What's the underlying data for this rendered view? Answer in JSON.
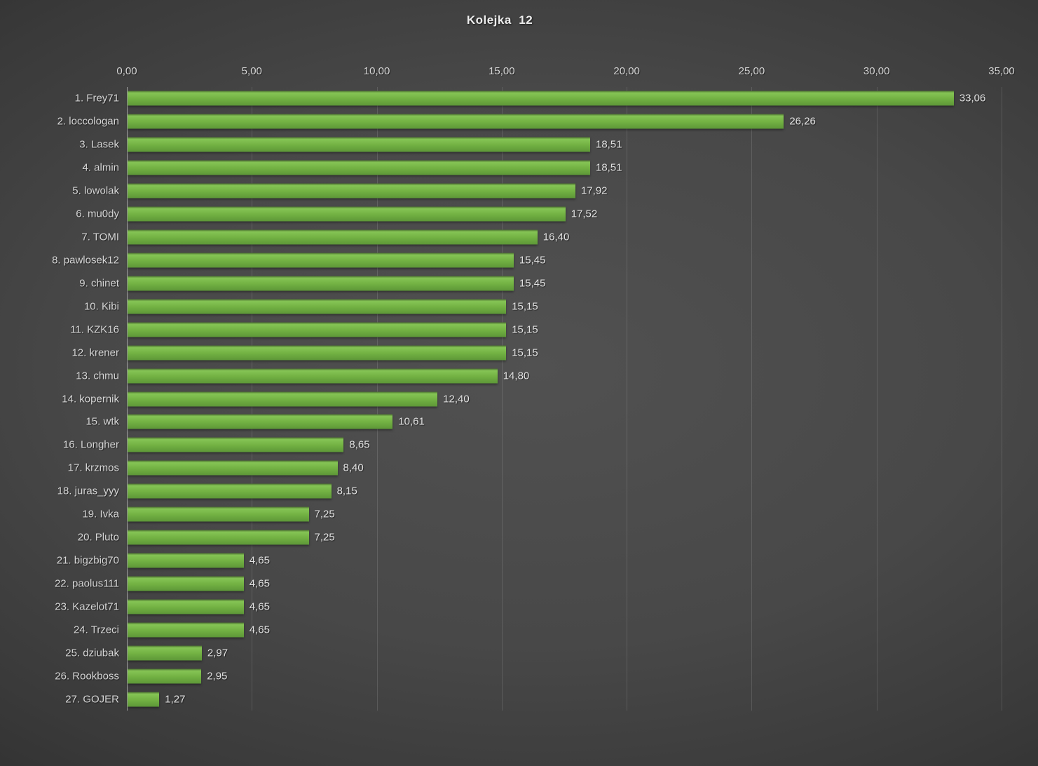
{
  "title": "Kolejka  12",
  "colors": {
    "background_center": "#515151",
    "background_edge": "#242424",
    "bar_light": "#85c455",
    "bar_mid": "#73b243",
    "bar_dark": "#5d9738",
    "text": "#d6d6d6",
    "gridline": "rgba(255,255,255,0.13)",
    "axis_line": "#9e9e9e"
  },
  "chart_data": {
    "type": "bar",
    "orientation": "horizontal",
    "title": "Kolejka  12",
    "categories": [
      "1. Frey71",
      "2. loccologan",
      "3. Lasek",
      "4. almin",
      "5. lowolak",
      "6. mu0dy",
      "7. TOMI",
      "8. pawlosek12",
      "9. chinet",
      "10. Kibi",
      "11. KZK16",
      "12. krener",
      "13. chmu",
      "14. kopernik",
      "15. wtk",
      "16. Longher",
      "17. krzmos",
      "18. juras_yyy",
      "19. Ivka",
      "20. Pluto",
      "21. bigzbig70",
      "22. paolus111",
      "23. Kazelot71",
      "24. Trzeci",
      "25. dziubak",
      "26. Rookboss",
      "27. GOJER"
    ],
    "values": [
      33.06,
      26.26,
      18.51,
      18.51,
      17.92,
      17.52,
      16.4,
      15.45,
      15.45,
      15.15,
      15.15,
      15.15,
      14.8,
      12.4,
      10.61,
      8.65,
      8.4,
      8.15,
      7.25,
      7.25,
      4.65,
      4.65,
      4.65,
      4.65,
      2.97,
      2.95,
      1.27
    ],
    "value_labels": [
      "33,06",
      "26,26",
      "18,51",
      "18,51",
      "17,92",
      "17,52",
      "16,40",
      "15,45",
      "15,45",
      "15,15",
      "15,15",
      "15,15",
      "14,80",
      "12,40",
      "10,61",
      "8,65",
      "8,40",
      "8,15",
      "7,25",
      "7,25",
      "4,65",
      "4,65",
      "4,65",
      "4,65",
      "2,97",
      "2,95",
      "1,27"
    ],
    "x_axis": {
      "min": 0,
      "max": 35,
      "tick_interval": 5,
      "tick_labels": [
        "0,00",
        "5,00",
        "10,00",
        "15,00",
        "20,00",
        "25,00",
        "30,00",
        "35,00"
      ]
    },
    "grid": true,
    "legend": false
  }
}
